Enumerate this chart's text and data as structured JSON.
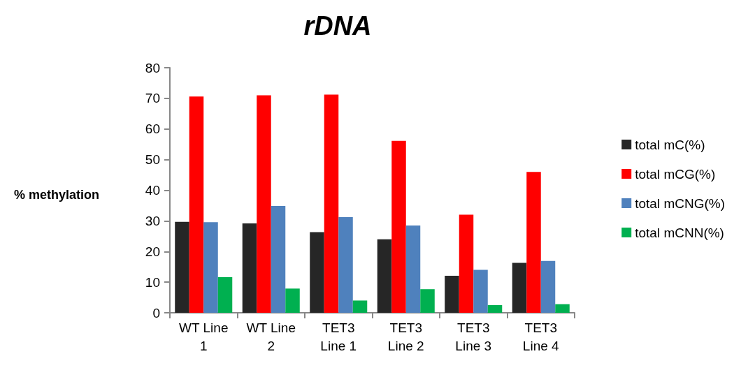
{
  "chart_data": {
    "type": "bar",
    "title": "rDNA",
    "ylabel": "% methylation",
    "categories": [
      "WT Line\n1",
      "WT Line\n2",
      "TET3\nLine 1",
      "TET3\nLine 2",
      "TET3\nLine 3",
      "TET3\nLine 4"
    ],
    "series": [
      {
        "name": "total mC(%)",
        "color": "#262626",
        "values": [
          29.7,
          29.2,
          26.3,
          24.0,
          12.1,
          16.3
        ]
      },
      {
        "name": "total mCG(%)",
        "color": "#ff0000",
        "values": [
          70.6,
          71.0,
          71.2,
          56.1,
          32.0,
          46.0
        ]
      },
      {
        "name": "total mCNG(%)",
        "color": "#4f81bd",
        "values": [
          29.6,
          34.9,
          31.2,
          28.5,
          14.0,
          16.9
        ]
      },
      {
        "name": "total mCNN(%)",
        "color": "#00b050",
        "values": [
          11.6,
          7.9,
          4.0,
          7.7,
          2.5,
          2.8
        ]
      }
    ],
    "ylim": [
      0,
      80
    ],
    "yticks": [
      0,
      10,
      20,
      30,
      40,
      50,
      60,
      70,
      80
    ],
    "grid": false,
    "legend": "right"
  }
}
